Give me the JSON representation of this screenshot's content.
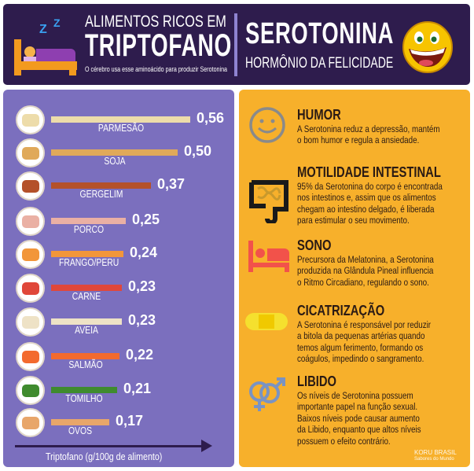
{
  "header": {
    "title_line1": "ALIMENTOS RICOS EM",
    "title_line2": "TRIPTOFANO",
    "subtitle": "O cérebro usa esse aminoácido para produzir Serotonina",
    "right_title": "SEROTONINA",
    "right_subtitle": "HORMÔNIO DA FELICIDADE",
    "sleep_glyph": "Z Z"
  },
  "chart_data": {
    "type": "bar",
    "orientation": "horizontal",
    "xlabel": "Triptofano (g/100g de alimento)",
    "categories": [
      "PARMESÃO",
      "SOJA",
      "GERGELIM",
      "PORCO",
      "FRANGO/PERU",
      "CARNE",
      "AVEIA",
      "SALMÃO",
      "TOMILHO",
      "OVOS"
    ],
    "values": [
      0.56,
      0.5,
      0.37,
      0.25,
      0.24,
      0.23,
      0.23,
      0.22,
      0.21,
      0.17
    ],
    "value_labels": [
      "0,56",
      "0,50",
      "0,37",
      "0,25",
      "0,24",
      "0,23",
      "0,23",
      "0,22",
      "0,21",
      "0,17"
    ],
    "colors": [
      "#eddcaa",
      "#e0a95a",
      "#b4512a",
      "#eab0a4",
      "#f2963a",
      "#e0473a",
      "#eee2c6",
      "#f36a2e",
      "#3f8b2e",
      "#e8a66a"
    ]
  },
  "benefits": [
    {
      "title": "HUMOR",
      "lines": [
        "A Serotonina reduz a depressão, mantém",
        "o bom humor e regula a ansiedade."
      ],
      "icon": "smiley-icon"
    },
    {
      "title": "MOTILIDADE INTESTINAL",
      "lines": [
        "95% da Serotonina do corpo é encontrada",
        "nos intestinos e, assim que os alimentos",
        "chegam ao intestino delgado, é liberada",
        "para estimular o seu movimento."
      ],
      "icon": "intestine-icon"
    },
    {
      "title": "SONO",
      "lines": [
        "Precursora da Melatonina, a Serotonina",
        "produzida na Glândula Pineal influencia",
        "o Ritmo Circadiano, regulando o sono."
      ],
      "icon": "bed-icon"
    },
    {
      "title": "CICATRIZAÇÃO",
      "lines": [
        "A Serotonina é responsável por reduzir",
        "a bitola da pequenas artérias quando",
        "temos algum ferimento, formando os",
        "coágulos, impedindo o sangramento."
      ],
      "icon": "bandage-icon"
    },
    {
      "title": "LIBIDO",
      "lines": [
        "Os níveis de Serotonina possuem",
        "importante papel na função sexual.",
        "Baixos níveis pode causar aumento",
        "da Libido, enquanto que altos níveis",
        "possuem o efeito contrário."
      ],
      "icon": "gender-icon"
    }
  ],
  "brand": {
    "name": "KORU BRASIL",
    "tagline": "Sabores do Mundo"
  }
}
